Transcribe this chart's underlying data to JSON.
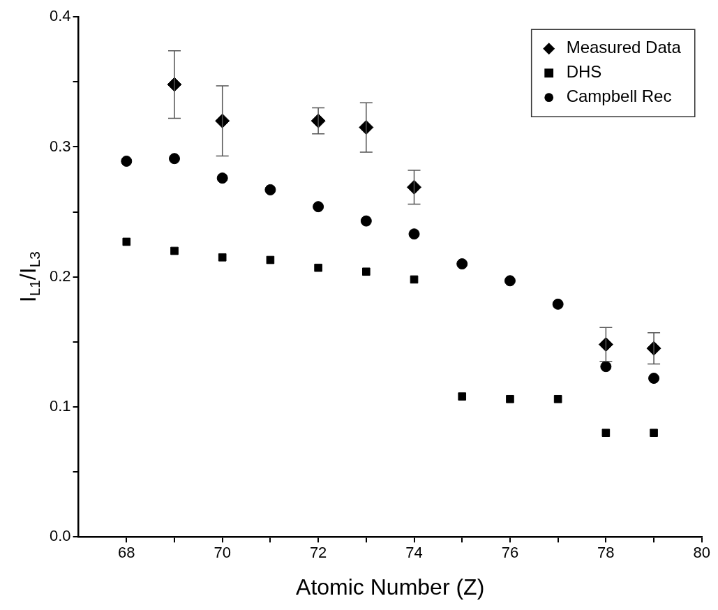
{
  "chart_data": {
    "type": "scatter",
    "xlabel": "Atomic Number (Z)",
    "ylabel": "I$_{L1}$/I$_{L3}$",
    "xlim": [
      67,
      80
    ],
    "xticks": [
      68,
      {
        "value": 69,
        "label": null
      },
      70,
      {
        "value": 71,
        "label": null
      },
      72,
      {
        "value": 73,
        "label": null
      },
      74,
      {
        "value": 75,
        "label": null
      },
      76,
      {
        "value": 77,
        "label": null
      },
      78,
      {
        "value": 79,
        "label": null
      },
      80
    ],
    "ylim": [
      0,
      0.4
    ],
    "yticks": [
      {
        "value": 0,
        "label": "0.0"
      },
      {
        "value": 0.05,
        "label": null
      },
      0.1,
      {
        "value": 0.15,
        "label": null
      },
      0.2,
      {
        "value": 0.25,
        "label": null
      },
      0.3,
      {
        "value": 0.35,
        "label": null
      },
      0.4
    ],
    "grid": false,
    "legend": "top right",
    "series": [
      {
        "name": "Measured Data",
        "color": "#000000",
        "marker": "diamond",
        "x": [
          69,
          70,
          72,
          73,
          74,
          78,
          79
        ],
        "values": [
          0.348,
          0.32,
          0.32,
          0.315,
          0.269,
          0.148,
          0.145
        ],
        "errors": [
          0.026,
          0.027,
          0.01,
          0.019,
          0.013,
          0.013,
          0.012
        ]
      },
      {
        "name": "DHS",
        "color": "#000000",
        "marker": "square",
        "x": [
          68,
          69,
          70,
          71,
          72,
          73,
          74,
          75,
          76,
          77,
          78,
          79
        ],
        "values": [
          0.227,
          0.22,
          0.215,
          0.213,
          0.207,
          0.204,
          0.198,
          0.108,
          0.106,
          0.106,
          0.08,
          0.08
        ]
      },
      {
        "name": "Campbell Rec",
        "color": "#000000",
        "marker": "circle",
        "x": [
          68,
          69,
          70,
          71,
          72,
          73,
          74,
          75,
          76,
          77,
          78,
          79
        ],
        "values": [
          0.289,
          0.291,
          0.276,
          0.267,
          0.254,
          0.243,
          0.233,
          0.21,
          0.197,
          0.179,
          0.131,
          0.122
        ]
      }
    ]
  }
}
